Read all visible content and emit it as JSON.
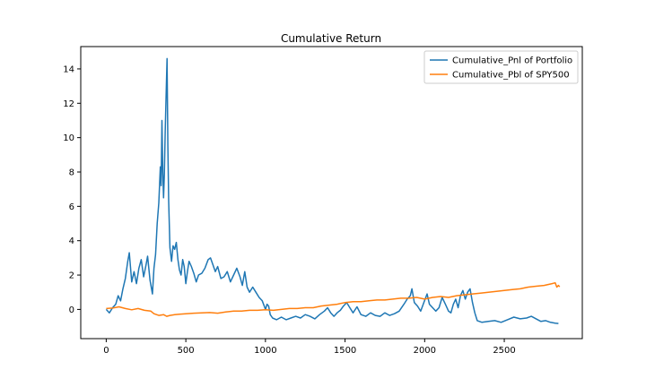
{
  "chart_data": {
    "type": "line",
    "title": "Cumulative Return",
    "xlabel": "",
    "ylabel": "",
    "xlim": [
      -160,
      2990
    ],
    "ylim": [
      -1.7,
      15.3
    ],
    "x_ticks": [
      0,
      500,
      1000,
      1500,
      2000,
      2500
    ],
    "y_ticks": [
      0,
      2,
      4,
      6,
      8,
      10,
      12,
      14
    ],
    "grid": false,
    "legend_position": "top-right",
    "series": [
      {
        "name": "Cumulative_Pnl of Portfolio",
        "color": "#1f77b4",
        "points": [
          [
            0,
            0.0
          ],
          [
            20,
            -0.2
          ],
          [
            40,
            0.1
          ],
          [
            60,
            0.3
          ],
          [
            75,
            0.8
          ],
          [
            90,
            0.5
          ],
          [
            105,
            1.2
          ],
          [
            120,
            1.8
          ],
          [
            135,
            2.8
          ],
          [
            145,
            3.3
          ],
          [
            160,
            1.6
          ],
          [
            175,
            2.2
          ],
          [
            190,
            1.5
          ],
          [
            205,
            2.4
          ],
          [
            220,
            2.9
          ],
          [
            235,
            1.9
          ],
          [
            250,
            2.6
          ],
          [
            260,
            3.1
          ],
          [
            275,
            1.7
          ],
          [
            290,
            0.9
          ],
          [
            300,
            2.4
          ],
          [
            310,
            3.2
          ],
          [
            320,
            5.0
          ],
          [
            330,
            6.2
          ],
          [
            340,
            8.3
          ],
          [
            345,
            7.2
          ],
          [
            350,
            11.0
          ],
          [
            355,
            8.0
          ],
          [
            360,
            6.5
          ],
          [
            365,
            7.9
          ],
          [
            370,
            10.3
          ],
          [
            378,
            13.2
          ],
          [
            382,
            14.6
          ],
          [
            387,
            9.5
          ],
          [
            392,
            6.3
          ],
          [
            400,
            3.6
          ],
          [
            410,
            2.8
          ],
          [
            420,
            3.7
          ],
          [
            430,
            3.5
          ],
          [
            440,
            3.9
          ],
          [
            450,
            2.9
          ],
          [
            460,
            2.3
          ],
          [
            470,
            2.0
          ],
          [
            480,
            2.9
          ],
          [
            490,
            2.5
          ],
          [
            500,
            1.5
          ],
          [
            510,
            2.2
          ],
          [
            520,
            2.8
          ],
          [
            535,
            2.5
          ],
          [
            550,
            2.1
          ],
          [
            565,
            1.6
          ],
          [
            580,
            2.0
          ],
          [
            600,
            2.1
          ],
          [
            620,
            2.4
          ],
          [
            640,
            2.9
          ],
          [
            655,
            3.0
          ],
          [
            670,
            2.6
          ],
          [
            685,
            2.2
          ],
          [
            700,
            2.5
          ],
          [
            720,
            1.8
          ],
          [
            740,
            1.9
          ],
          [
            760,
            2.2
          ],
          [
            780,
            1.6
          ],
          [
            800,
            2.0
          ],
          [
            820,
            2.4
          ],
          [
            840,
            1.9
          ],
          [
            855,
            1.4
          ],
          [
            870,
            2.2
          ],
          [
            885,
            1.3
          ],
          [
            900,
            1.0
          ],
          [
            920,
            1.3
          ],
          [
            940,
            1.0
          ],
          [
            960,
            0.7
          ],
          [
            980,
            0.5
          ],
          [
            1000,
            0.0
          ],
          [
            1010,
            0.3
          ],
          [
            1020,
            0.2
          ],
          [
            1030,
            -0.3
          ],
          [
            1045,
            -0.5
          ],
          [
            1070,
            -0.6
          ],
          [
            1100,
            -0.45
          ],
          [
            1130,
            -0.6
          ],
          [
            1160,
            -0.5
          ],
          [
            1190,
            -0.4
          ],
          [
            1220,
            -0.5
          ],
          [
            1250,
            -0.3
          ],
          [
            1280,
            -0.4
          ],
          [
            1310,
            -0.55
          ],
          [
            1340,
            -0.3
          ],
          [
            1370,
            -0.1
          ],
          [
            1390,
            0.1
          ],
          [
            1410,
            -0.2
          ],
          [
            1430,
            -0.4
          ],
          [
            1450,
            -0.2
          ],
          [
            1470,
            -0.05
          ],
          [
            1490,
            0.2
          ],
          [
            1510,
            0.4
          ],
          [
            1530,
            0.1
          ],
          [
            1550,
            -0.2
          ],
          [
            1575,
            0.15
          ],
          [
            1600,
            -0.3
          ],
          [
            1630,
            -0.4
          ],
          [
            1660,
            -0.2
          ],
          [
            1690,
            -0.35
          ],
          [
            1720,
            -0.4
          ],
          [
            1750,
            -0.2
          ],
          [
            1780,
            -0.35
          ],
          [
            1810,
            -0.25
          ],
          [
            1840,
            -0.1
          ],
          [
            1870,
            0.3
          ],
          [
            1890,
            0.6
          ],
          [
            1910,
            0.8
          ],
          [
            1920,
            1.2
          ],
          [
            1935,
            0.4
          ],
          [
            1955,
            0.2
          ],
          [
            1975,
            -0.1
          ],
          [
            1995,
            0.4
          ],
          [
            2015,
            0.9
          ],
          [
            2030,
            0.3
          ],
          [
            2050,
            0.1
          ],
          [
            2070,
            -0.1
          ],
          [
            2090,
            0.1
          ],
          [
            2110,
            0.7
          ],
          [
            2130,
            0.3
          ],
          [
            2150,
            -0.1
          ],
          [
            2165,
            -0.2
          ],
          [
            2180,
            0.3
          ],
          [
            2195,
            0.6
          ],
          [
            2210,
            0.1
          ],
          [
            2225,
            0.8
          ],
          [
            2240,
            1.1
          ],
          [
            2255,
            0.6
          ],
          [
            2270,
            1.0
          ],
          [
            2285,
            1.2
          ],
          [
            2300,
            0.4
          ],
          [
            2315,
            -0.2
          ],
          [
            2330,
            -0.65
          ],
          [
            2360,
            -0.75
          ],
          [
            2400,
            -0.7
          ],
          [
            2440,
            -0.65
          ],
          [
            2480,
            -0.75
          ],
          [
            2520,
            -0.6
          ],
          [
            2560,
            -0.45
          ],
          [
            2600,
            -0.55
          ],
          [
            2640,
            -0.5
          ],
          [
            2670,
            -0.4
          ],
          [
            2700,
            -0.55
          ],
          [
            2730,
            -0.7
          ],
          [
            2760,
            -0.65
          ],
          [
            2790,
            -0.75
          ],
          [
            2820,
            -0.8
          ],
          [
            2840,
            -0.82
          ]
        ]
      },
      {
        "name": "Cumulative_Pbl of SPY500",
        "color": "#ff7f0e",
        "points": [
          [
            0,
            0.05
          ],
          [
            40,
            0.08
          ],
          [
            80,
            0.15
          ],
          [
            120,
            0.05
          ],
          [
            160,
            -0.02
          ],
          [
            200,
            0.05
          ],
          [
            240,
            -0.05
          ],
          [
            280,
            -0.1
          ],
          [
            300,
            -0.25
          ],
          [
            330,
            -0.35
          ],
          [
            360,
            -0.3
          ],
          [
            380,
            -0.4
          ],
          [
            400,
            -0.35
          ],
          [
            430,
            -0.3
          ],
          [
            460,
            -0.28
          ],
          [
            500,
            -0.25
          ],
          [
            550,
            -0.22
          ],
          [
            600,
            -0.2
          ],
          [
            650,
            -0.18
          ],
          [
            700,
            -0.22
          ],
          [
            750,
            -0.15
          ],
          [
            800,
            -0.1
          ],
          [
            850,
            -0.1
          ],
          [
            900,
            -0.05
          ],
          [
            950,
            -0.05
          ],
          [
            1000,
            -0.02
          ],
          [
            1050,
            -0.05
          ],
          [
            1100,
            0.0
          ],
          [
            1150,
            0.05
          ],
          [
            1200,
            0.05
          ],
          [
            1250,
            0.1
          ],
          [
            1300,
            0.1
          ],
          [
            1350,
            0.2
          ],
          [
            1400,
            0.25
          ],
          [
            1450,
            0.3
          ],
          [
            1500,
            0.4
          ],
          [
            1550,
            0.45
          ],
          [
            1600,
            0.45
          ],
          [
            1650,
            0.5
          ],
          [
            1700,
            0.55
          ],
          [
            1750,
            0.55
          ],
          [
            1800,
            0.6
          ],
          [
            1850,
            0.65
          ],
          [
            1900,
            0.65
          ],
          [
            1950,
            0.7
          ],
          [
            2000,
            0.6
          ],
          [
            2050,
            0.7
          ],
          [
            2100,
            0.75
          ],
          [
            2150,
            0.7
          ],
          [
            2200,
            0.8
          ],
          [
            2250,
            0.85
          ],
          [
            2300,
            0.9
          ],
          [
            2350,
            0.95
          ],
          [
            2400,
            1.0
          ],
          [
            2450,
            1.05
          ],
          [
            2500,
            1.1
          ],
          [
            2550,
            1.15
          ],
          [
            2600,
            1.2
          ],
          [
            2650,
            1.3
          ],
          [
            2700,
            1.35
          ],
          [
            2750,
            1.4
          ],
          [
            2800,
            1.5
          ],
          [
            2820,
            1.55
          ],
          [
            2830,
            1.3
          ],
          [
            2840,
            1.4
          ],
          [
            2848,
            1.32
          ]
        ]
      }
    ]
  }
}
